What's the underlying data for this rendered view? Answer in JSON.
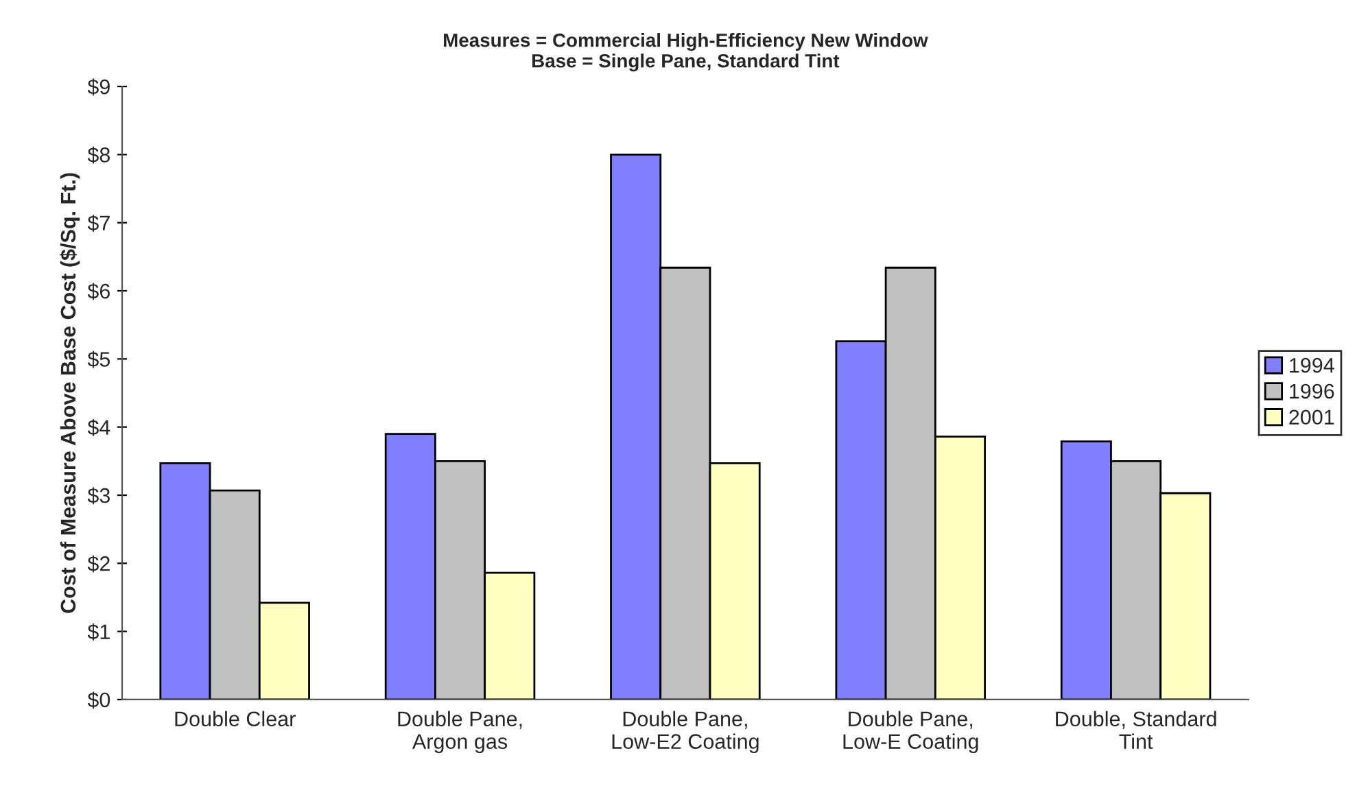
{
  "chart_data": {
    "type": "bar",
    "title": "Measures = Commercial High-Efficiency New Window\nBase = Single Pane, Standard Tint",
    "ylabel": "Cost of Measure Above Base Cost ($/Sq. Ft.)",
    "categories": [
      "Double Clear",
      "Double Pane,\nArgon gas",
      "Double Pane,\nLow-E2 Coating",
      "Double Pane,\nLow-E Coating",
      "Double, Standard\nTint"
    ],
    "series": [
      {
        "name": "1994",
        "color": "#8080ff",
        "values": [
          3.47,
          3.9,
          8.0,
          5.26,
          3.79
        ]
      },
      {
        "name": "1996",
        "color": "#c0c0c0",
        "values": [
          3.07,
          3.5,
          6.34,
          6.34,
          3.5
        ]
      },
      {
        "name": "2001",
        "color": "#ffffc0",
        "values": [
          1.42,
          1.86,
          3.47,
          3.86,
          3.03
        ]
      }
    ],
    "ylim": [
      0,
      9
    ],
    "yticks": [
      {
        "value": 0,
        "label": "$0"
      },
      {
        "value": 1,
        "label": "$1"
      },
      {
        "value": 2,
        "label": "$2"
      },
      {
        "value": 3,
        "label": "$3"
      },
      {
        "value": 4,
        "label": "$4"
      },
      {
        "value": 5,
        "label": "$5"
      },
      {
        "value": 6,
        "label": "$6"
      },
      {
        "value": 7,
        "label": "$7"
      },
      {
        "value": 8,
        "label": "$8"
      },
      {
        "value": 9,
        "label": "$9"
      }
    ],
    "grid": false,
    "legend": "right"
  }
}
